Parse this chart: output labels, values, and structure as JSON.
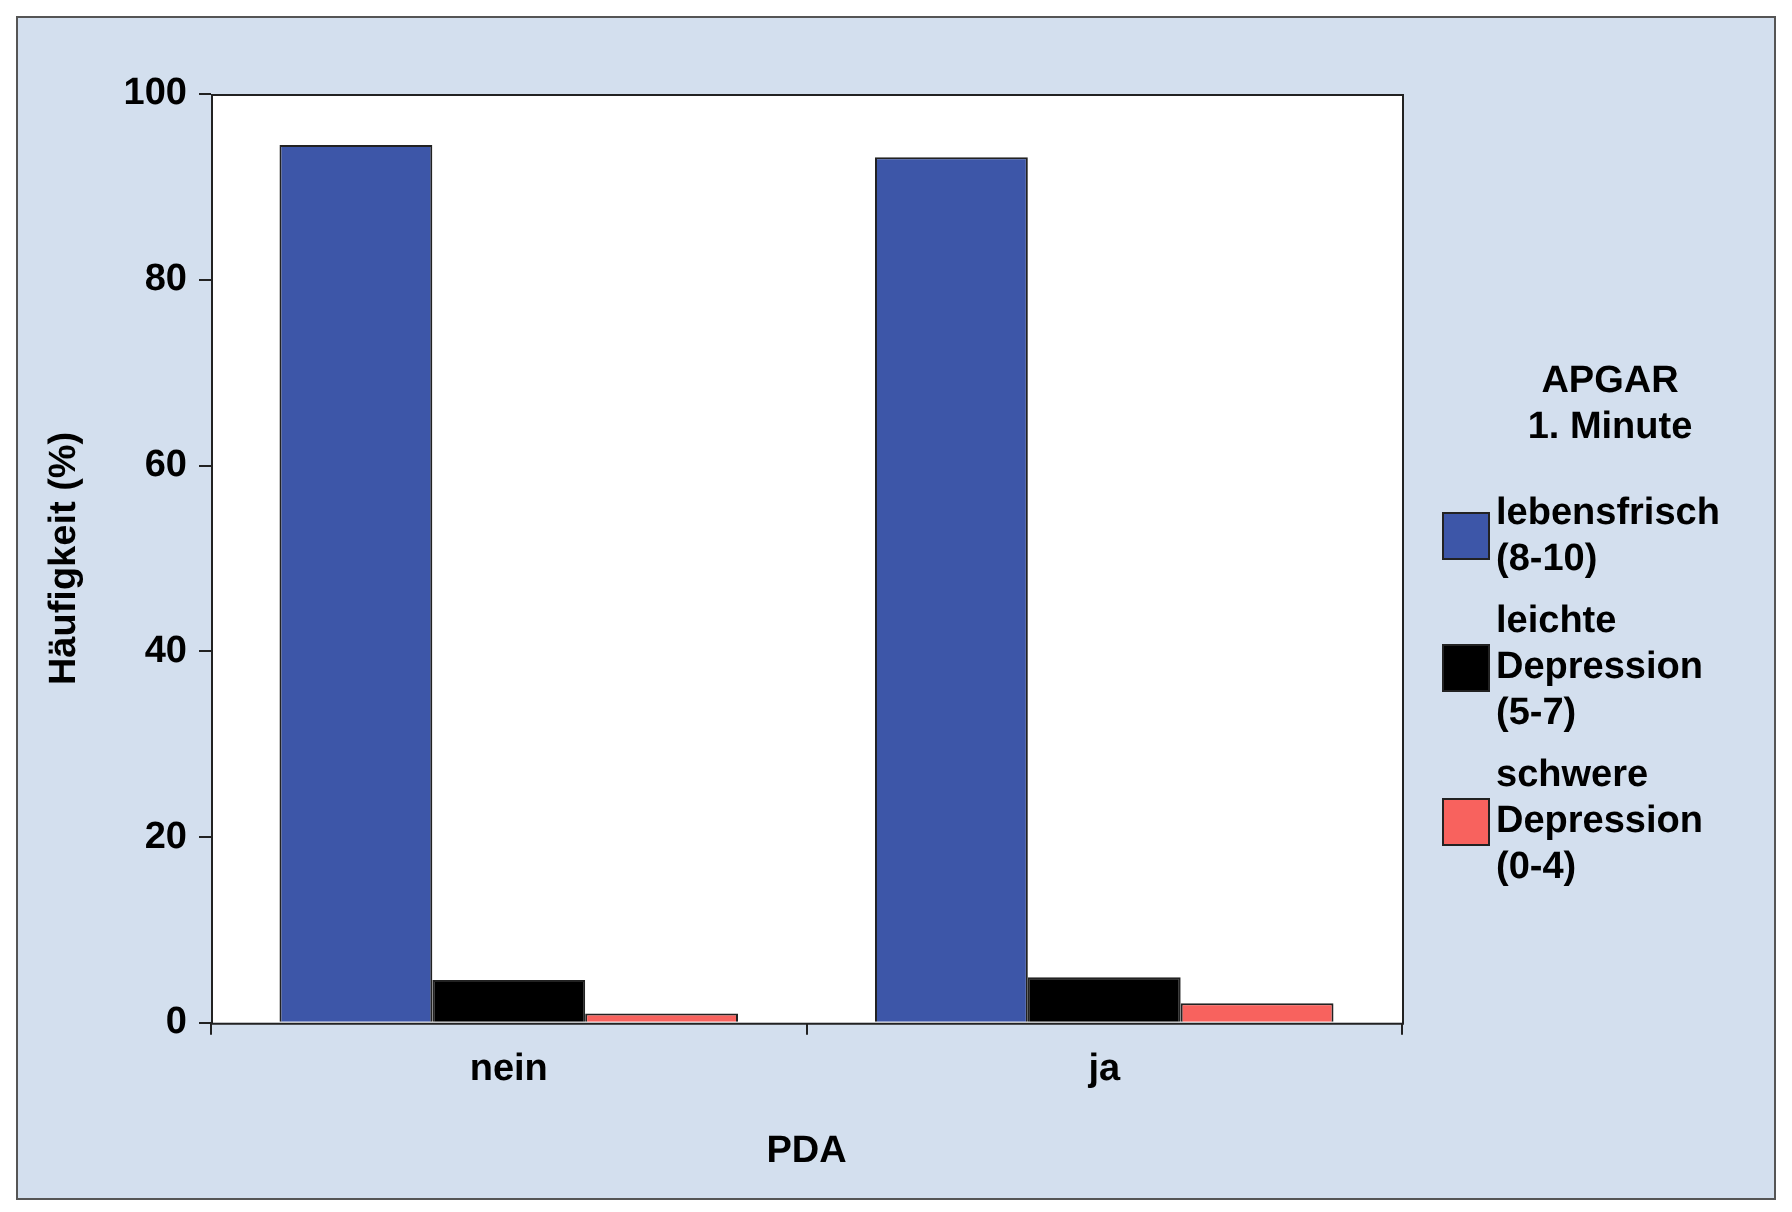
{
  "chart_data": {
    "type": "bar",
    "xlabel": "PDA",
    "ylabel": "Häufigkeit (%)",
    "legend_title": "APGAR\n1. Minute",
    "categories": [
      "nein",
      "ja"
    ],
    "series": [
      {
        "name": "lebensfrisch (8-10)",
        "color": "#3d56a8",
        "values": [
          94.5,
          93.2
        ]
      },
      {
        "name": "leichte Depression (5-7)",
        "color": "#000000",
        "values": [
          4.6,
          4.9
        ]
      },
      {
        "name": "schwere Depression (0-4)",
        "color": "#f8625e",
        "values": [
          1.0,
          2.1
        ]
      }
    ],
    "ylim": [
      0,
      100
    ],
    "yticks": [
      0,
      20,
      40,
      60,
      80,
      100
    ],
    "grid": false,
    "legend": "right"
  }
}
